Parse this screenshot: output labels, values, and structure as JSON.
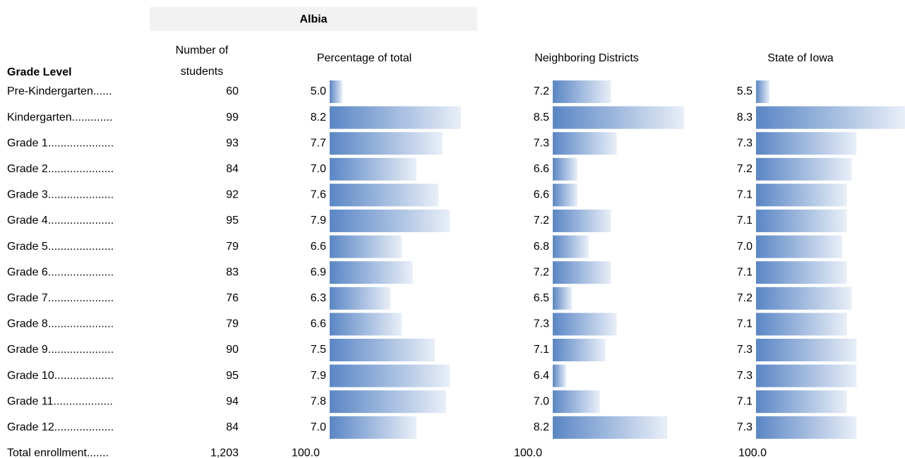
{
  "header": {
    "group": "Albia",
    "grade_level": "Grade Level",
    "students": [
      "Number of",
      "students"
    ],
    "percentage": "Percentage of total",
    "neighboring": "Neighboring Districts",
    "state": "State of Iowa"
  },
  "grades": [
    "Pre-Kindergarten......",
    "Kindergarten.............",
    "Grade 1.....................",
    "Grade 2.....................",
    "Grade 3.....................",
    "Grade 4.....................",
    "Grade 5.....................",
    "Grade 6.....................",
    "Grade 7.....................",
    "Grade 8.....................",
    "Grade 9.....................",
    "Grade 10...................",
    "Grade 11...................",
    "Grade 12..................."
  ],
  "total_label": "Total enrollment.......",
  "students": {
    "values": [
      60,
      99,
      93,
      84,
      92,
      95,
      79,
      83,
      76,
      79,
      90,
      95,
      94,
      84
    ],
    "total": {
      "value": 1203,
      "label": "1,203"
    }
  },
  "percentage": {
    "values": [
      5.0,
      8.2,
      7.7,
      7.0,
      7.6,
      7.9,
      6.6,
      6.9,
      6.3,
      6.6,
      7.5,
      7.9,
      7.8,
      7.0
    ],
    "value_labels": [
      "5.0",
      "8.2",
      "7.7",
      "7.0",
      "7.6",
      "7.9",
      "6.6",
      "6.9",
      "6.3",
      "6.6",
      "7.5",
      "7.9",
      "7.8",
      "7.0"
    ],
    "total": {
      "value": 100,
      "label": "100.0"
    }
  },
  "neighboring": {
    "values": [
      7.2,
      8.5,
      7.3,
      6.6,
      6.6,
      7.2,
      6.8,
      7.2,
      6.5,
      7.3,
      7.1,
      6.4,
      7.0,
      8.2
    ],
    "value_labels": [
      "7.2",
      "8.5",
      "7.3",
      "6.6",
      "6.6",
      "7.2",
      "6.8",
      "7.2",
      "6.5",
      "7.3",
      "7.1",
      "6.4",
      "7.0",
      "8.2"
    ],
    "total": {
      "value": 100,
      "label": "100.0"
    }
  },
  "state": {
    "values": [
      5.5,
      8.3,
      7.3,
      7.2,
      7.1,
      7.1,
      7.0,
      7.1,
      7.2,
      7.1,
      7.3,
      7.3,
      7.1,
      7.3
    ],
    "value_labels": [
      "5.5",
      "8.3",
      "7.3",
      "7.2",
      "7.1",
      "7.1",
      "7.0",
      "7.1",
      "7.2",
      "7.1",
      "7.3",
      "7.3",
      "7.1",
      "7.3"
    ],
    "total": {
      "value": 100,
      "label": "100.0"
    }
  }
}
